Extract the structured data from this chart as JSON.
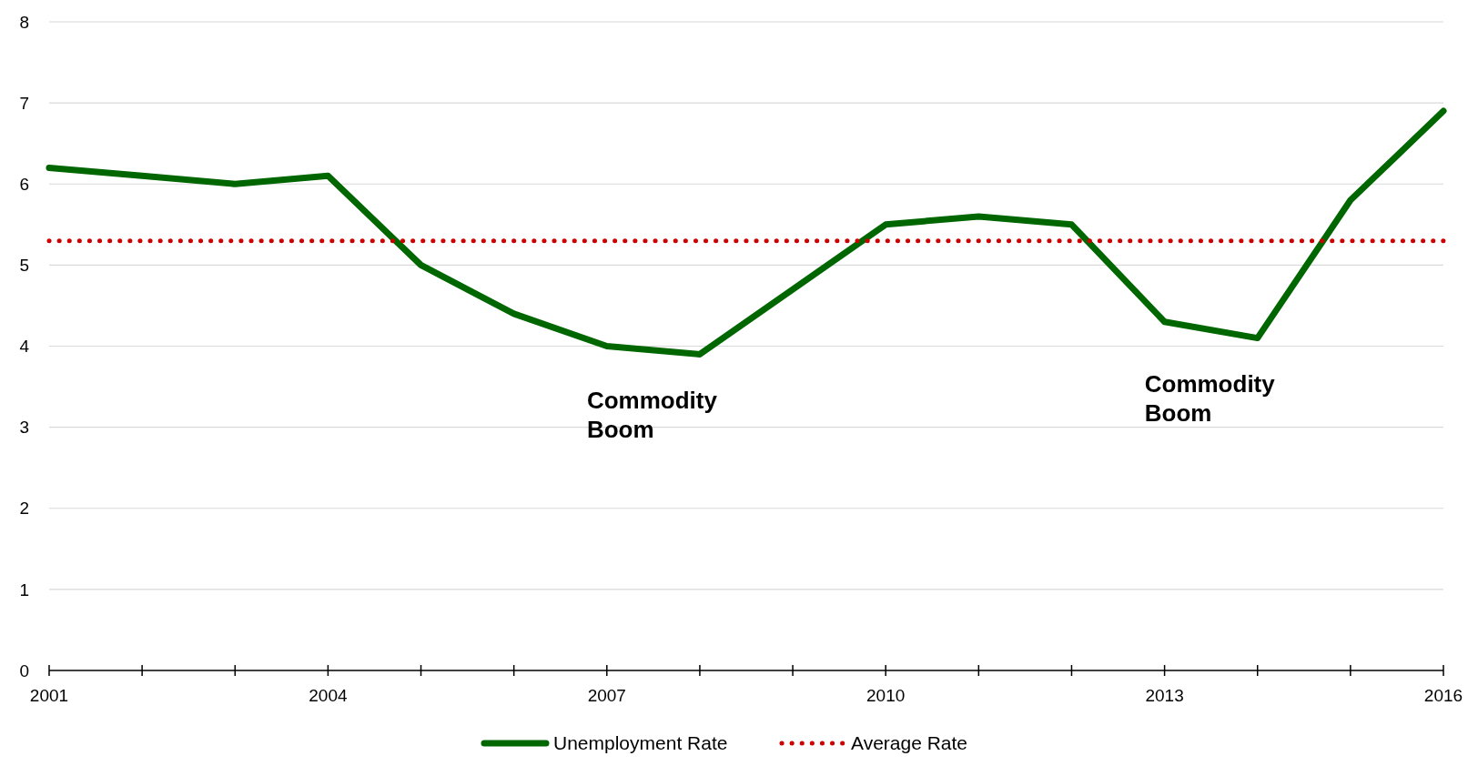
{
  "chart_data": {
    "type": "line",
    "x": [
      2001,
      2002,
      2003,
      2004,
      2005,
      2006,
      2007,
      2008,
      2009,
      2010,
      2011,
      2012,
      2013,
      2014,
      2015,
      2016
    ],
    "series": [
      {
        "name": "Unemployment Rate",
        "color": "#006600",
        "values": [
          6.2,
          6.1,
          6.0,
          6.1,
          5.0,
          4.4,
          4.0,
          3.9,
          4.7,
          5.5,
          5.6,
          5.5,
          4.3,
          4.1,
          5.8,
          6.9
        ],
        "line_style": "solid"
      },
      {
        "name": "Average Rate",
        "color": "#cc0000",
        "values": [
          5.3,
          5.3,
          5.3,
          5.3,
          5.3,
          5.3,
          5.3,
          5.3,
          5.3,
          5.3,
          5.3,
          5.3,
          5.3,
          5.3,
          5.3,
          5.3
        ],
        "line_style": "dotted"
      }
    ],
    "xlim": [
      2001,
      2016
    ],
    "xticks": [
      2001,
      {
        "value": 2002,
        "label": null
      },
      {
        "value": 2003,
        "label": null
      },
      2004,
      {
        "value": 2005,
        "label": null
      },
      {
        "value": 2006,
        "label": null
      },
      2007,
      {
        "value": 2008,
        "label": null
      },
      {
        "value": 2009,
        "label": null
      },
      2010,
      {
        "value": 2011,
        "label": null
      },
      {
        "value": 2012,
        "label": null
      },
      2013,
      {
        "value": 2014,
        "label": null
      },
      {
        "value": 2015,
        "label": null
      },
      2016
    ],
    "ylim": [
      0,
      8
    ],
    "yticks": [
      0,
      1,
      2,
      3,
      4,
      5,
      6,
      7,
      8
    ],
    "grid": "y",
    "legend": "bottom",
    "marker": "none",
    "annotations": [
      "Commodity Boom",
      "Commodity Boom"
    ]
  }
}
